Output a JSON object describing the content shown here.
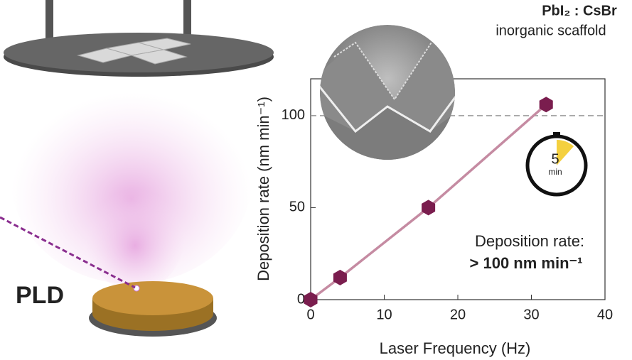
{
  "chart_data": {
    "type": "line",
    "title": "PbI₂ : CsBr",
    "subtitle": "inorganic scaffold",
    "x_label": "Laser Frequency (Hz)",
    "y_label": "Deposition rate (nm min⁻¹)",
    "x": [
      0,
      4,
      16,
      32
    ],
    "values": [
      0,
      12,
      50,
      106
    ],
    "color": "#7a1d4e",
    "line_color": "#c58ba2",
    "marker": "hexagon",
    "xlim": [
      0,
      40
    ],
    "xticks": [
      0,
      10,
      20,
      30,
      40
    ],
    "ylim": [
      0,
      120
    ],
    "yticks": [
      0,
      50,
      100
    ],
    "hline": 100,
    "annotations": [
      "Deposition rate:",
      "> 100 nm min⁻¹"
    ],
    "setup_label": "PLD",
    "timer": {
      "number": "5",
      "unit": "min"
    }
  }
}
